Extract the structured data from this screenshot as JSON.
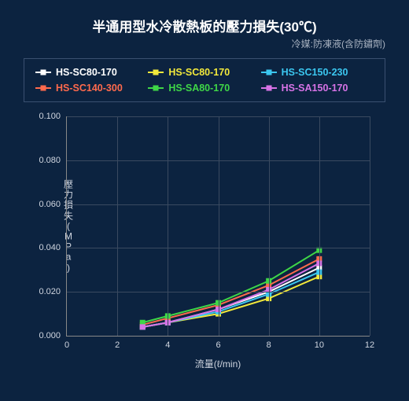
{
  "title": "半通用型水冷散熱板的壓力損失(30℃)",
  "title_fontsize": 17,
  "subtitle": "冷媒:防凍液(含防鏽劑)",
  "background_color": "#0c2340",
  "text_color": "#ffffff",
  "muted_text_color": "#a8b2c0",
  "axes": {
    "x": {
      "label": "流量(ℓ/min)",
      "min": 0,
      "max": 12,
      "tick_step": 2,
      "ticks": [
        0,
        2,
        4,
        6,
        8,
        10,
        12
      ]
    },
    "y": {
      "label": "壓力損失(MPa)",
      "min": 0,
      "max": 0.1,
      "tick_step": 0.02,
      "ticks": [
        0.0,
        0.02,
        0.04,
        0.06,
        0.08,
        0.1
      ],
      "decimals": 3
    }
  },
  "grid_color": "#3a4a60",
  "axis_line_color": "#888888",
  "legend_border_color": "#3a5070",
  "marker_size": 7,
  "line_width": 2,
  "label_fontsize": 12,
  "tick_fontsize": 11,
  "series": [
    {
      "name": "HS-SC80-170",
      "label": "HS-SC80-170",
      "color": "#ffffff",
      "x": [
        3,
        4,
        6,
        8,
        10
      ],
      "y": [
        0.004,
        0.006,
        0.012,
        0.02,
        0.031
      ]
    },
    {
      "name": "HS-SC80-170b",
      "label": "HS-SC80-170",
      "color": "#f2e93b",
      "x": [
        3,
        4,
        6,
        8,
        10
      ],
      "y": [
        0.004,
        0.006,
        0.01,
        0.017,
        0.027
      ]
    },
    {
      "name": "HS-SC150-230",
      "label": "HS-SC150-230",
      "color": "#3bc7f0",
      "x": [
        3,
        4,
        6,
        8,
        10
      ],
      "y": [
        0.004,
        0.006,
        0.011,
        0.019,
        0.029
      ]
    },
    {
      "name": "HS-SC140-300",
      "label": "HS-SC140-300",
      "color": "#ff6a4d",
      "x": [
        3,
        4,
        6,
        8,
        10
      ],
      "y": [
        0.005,
        0.008,
        0.014,
        0.023,
        0.035
      ]
    },
    {
      "name": "HS-SA80-170",
      "label": "HS-SA80-170",
      "color": "#3fd647",
      "x": [
        3,
        4,
        6,
        8,
        10
      ],
      "y": [
        0.006,
        0.009,
        0.015,
        0.025,
        0.039
      ]
    },
    {
      "name": "HS-SA150-170",
      "label": "HS-SA150-170",
      "color": "#d773e6",
      "x": [
        3,
        4,
        6,
        8,
        10
      ],
      "y": [
        0.004,
        0.006,
        0.012,
        0.021,
        0.033
      ]
    }
  ]
}
